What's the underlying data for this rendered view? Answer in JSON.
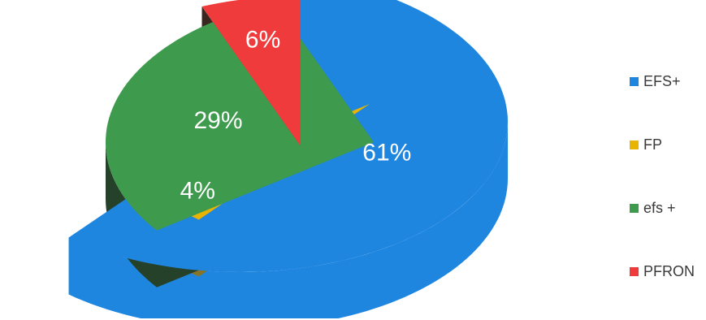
{
  "chart_data": {
    "type": "pie",
    "style": "3d-exploded",
    "categories": [
      "EFS+",
      "FP",
      "efs +",
      "PFRON"
    ],
    "values": [
      61,
      4,
      29,
      6
    ],
    "labels": [
      "61%",
      "4%",
      "29%",
      "6%"
    ],
    "colors": [
      "#1f86e0",
      "#e8b400",
      "#3e9a4c",
      "#ef3b3b"
    ],
    "side_colors": [
      "#1f86e0",
      "#8a7322",
      "#26412a",
      "#3a2820"
    ],
    "legend": {
      "position": "right",
      "entries": [
        {
          "label": "EFS+",
          "color": "#1f86e0"
        },
        {
          "label": "FP",
          "color": "#e8b400"
        },
        {
          "label": "efs +",
          "color": "#3e9a4c"
        },
        {
          "label": "PFRON",
          "color": "#ef3b3b"
        }
      ]
    }
  }
}
